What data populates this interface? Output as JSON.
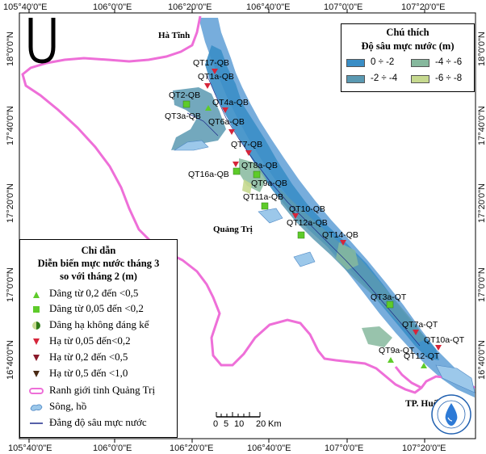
{
  "axes": {
    "top": [
      "105°40'0\"E",
      "106°0'0\"E",
      "106°20'0\"E",
      "106°40'0\"E",
      "107°0'0\"E",
      "107°20'0\"E"
    ],
    "bottom": [
      "105°40'0\"E",
      "106°0'0\"E",
      "106°20'0\"E",
      "106°40'0\"E",
      "107°0'0\"E",
      "107°20'0\"E"
    ],
    "left": [
      "18°0'0\"N",
      "17°40'0\"N",
      "17°20'0\"N",
      "17°0'0\"N",
      "16°40'0\"N"
    ],
    "right": [
      "18°0'0\"N",
      "17°40'0\"N",
      "17°20'0\"N",
      "17°0'0\"N",
      "16°40'0\"N"
    ]
  },
  "places": {
    "ha_tinh": "Hà Tĩnh",
    "quang_tri": "Quảng Trị",
    "tp_hue": "TP. Huế"
  },
  "wells": [
    {
      "label": "QT17-QB",
      "symbol": "triangle-down-red"
    },
    {
      "label": "QT1a-QB",
      "symbol": "triangle-down-red"
    },
    {
      "label": "QT2-QB",
      "symbol": "square-green"
    },
    {
      "label": "QT4a-QB",
      "symbol": "triangle-down-red"
    },
    {
      "label": "QT3a-QB",
      "symbol": "triangle-up-green"
    },
    {
      "label": "QT6a-QB",
      "symbol": "triangle-down-red"
    },
    {
      "label": "QT7-QB",
      "symbol": "triangle-down-red"
    },
    {
      "label": "QT8a-QB",
      "symbol": "triangle-down-red"
    },
    {
      "label": "QT16a-QB",
      "symbol": "square-green"
    },
    {
      "label": "QT9a-QB",
      "symbol": "square-green"
    },
    {
      "label": "QT11a-QB",
      "symbol": "square-green"
    },
    {
      "label": "QT10-QB",
      "symbol": "triangle-down-red"
    },
    {
      "label": "QT12a-QB",
      "symbol": "square-green"
    },
    {
      "label": "QT14-QB",
      "symbol": "triangle-down-red"
    },
    {
      "label": "QT3a-QT",
      "symbol": "square-green"
    },
    {
      "label": "QT7a-QT",
      "symbol": "triangle-down-red"
    },
    {
      "label": "QT10a-QT",
      "symbol": "triangle-down-red"
    },
    {
      "label": "QT9a-QT",
      "symbol": "triangle-up-green"
    },
    {
      "label": "QT12-QT",
      "symbol": "triangle-up-green"
    }
  ],
  "legend": {
    "title1": "Chú thích",
    "title2": "Độ sâu mực nước (m)",
    "items": [
      {
        "label": "0 ÷ -2",
        "color": "#3a8ec6"
      },
      {
        "label": "-4 ÷ -6",
        "color": "#86b89d"
      },
      {
        "label": "-2 ÷ -4",
        "color": "#5a99b2"
      },
      {
        "label": "-6 ÷ -8",
        "color": "#c6d98f"
      }
    ]
  },
  "guide": {
    "title1": "Chỉ dẫn",
    "title2": "Diễn biến mực nước tháng 3",
    "title3": "so với tháng 2 (m)",
    "items": [
      {
        "label": "Dâng từ 0,2 đến <0,5",
        "symbol": "triangle-up-green"
      },
      {
        "label": "Dâng từ 0,05 đến <0,2",
        "symbol": "square-green"
      },
      {
        "label": "Dâng hạ không đáng kể",
        "symbol": "half-circle"
      },
      {
        "label": "Hạ từ 0,05 đến<0,2",
        "symbol": "triangle-down-red"
      },
      {
        "label": "Hạ từ 0,2 đến <0,5",
        "symbol": "triangle-down-dark"
      },
      {
        "label": "Hạ từ 0,5 đến <1,0",
        "symbol": "triangle-down-brown"
      },
      {
        "label": "Ranh giới tỉnh Quảng Trị",
        "symbol": "boundary-line"
      },
      {
        "label": "Sông, hồ",
        "symbol": "water"
      },
      {
        "label": "Đẳng độ sâu mực nước",
        "symbol": "contour-line"
      }
    ]
  },
  "scale": {
    "ticks": [
      "0",
      "5",
      "10",
      "20"
    ],
    "unit": "Km"
  },
  "colors": {
    "boundary": "#ee6fd8",
    "sea": "#5f9fd6",
    "depth_0_2": "#3a8ec6",
    "depth_2_4": "#5a99b2",
    "depth_4_6": "#86b89d",
    "depth_6_8": "#c6d98f",
    "contour": "#1e2a8a"
  },
  "logo": {
    "text": "BẢO VỆ VÀ DỰ BÁO TÀI NGUYÊN NƯỚC - CEWAFO",
    "icon": "water-drop-icon"
  }
}
